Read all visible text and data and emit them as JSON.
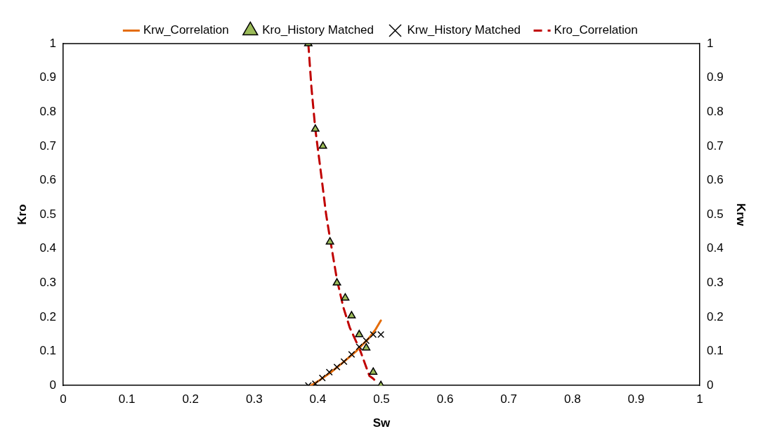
{
  "chart_data": {
    "type": "line",
    "xlabel": "Sw",
    "ylabel": "Kro",
    "y2label": "Krw",
    "xlim": [
      0,
      1
    ],
    "xticks": [
      0,
      0.1,
      0.2,
      0.3,
      0.4,
      0.5,
      0.6,
      0.7,
      0.8,
      0.9,
      1
    ],
    "ylim": [
      0,
      1
    ],
    "yticks": [
      0,
      0.1,
      0.2,
      0.3,
      0.4,
      0.5,
      0.6,
      0.7,
      0.8,
      0.9,
      1
    ],
    "y2lim": [
      0,
      1
    ],
    "y2ticks": [
      0,
      0.1,
      0.2,
      0.3,
      0.4,
      0.5,
      0.6,
      0.7,
      0.8,
      0.9,
      1
    ],
    "grid": false,
    "legend": "top",
    "series": [
      {
        "name": "Krw_Correlation",
        "type": "line",
        "axis": "y2",
        "color": "#e46c0a",
        "marker": "none",
        "line_style": "solid",
        "x": [
          0.389,
          0.4,
          0.42,
          0.44,
          0.46,
          0.48,
          0.49,
          0.499
        ],
        "values": [
          0,
          0.012,
          0.038,
          0.068,
          0.1,
          0.138,
          0.162,
          0.19
        ]
      },
      {
        "name": "Kro_History Matched",
        "type": "scatter",
        "color": "#9bbb59",
        "marker": "triangle",
        "x": [
          0.385,
          0.396,
          0.408,
          0.419,
          0.43,
          0.443,
          0.453,
          0.465,
          0.476,
          0.487,
          0.499
        ],
        "values": [
          1,
          0.75,
          0.7,
          0.42,
          0.3,
          0.256,
          0.204,
          0.149,
          0.11,
          0.039,
          0
        ]
      },
      {
        "name": "Krw_History Matched",
        "type": "scatter",
        "axis": "y2",
        "color": "#000000",
        "marker": "cross",
        "x": [
          0.385,
          0.396,
          0.407,
          0.418,
          0.43,
          0.441,
          0.453,
          0.465,
          0.476,
          0.487,
          0.499
        ],
        "values": [
          0,
          0.005,
          0.022,
          0.039,
          0.054,
          0.07,
          0.091,
          0.113,
          0.131,
          0.149,
          0.149
        ]
      },
      {
        "name": "Kro_Correlation",
        "type": "line",
        "color": "#c00000",
        "marker": "none",
        "line_style": "dashed",
        "x": [
          0.385,
          0.39,
          0.396,
          0.405,
          0.413,
          0.42,
          0.43,
          0.44,
          0.45,
          0.466,
          0.481,
          0.487,
          0.492
        ],
        "values": [
          1,
          0.87,
          0.75,
          0.62,
          0.5,
          0.42,
          0.31,
          0.229,
          0.17,
          0.105,
          0.028,
          0.02,
          0.01
        ]
      }
    ]
  }
}
